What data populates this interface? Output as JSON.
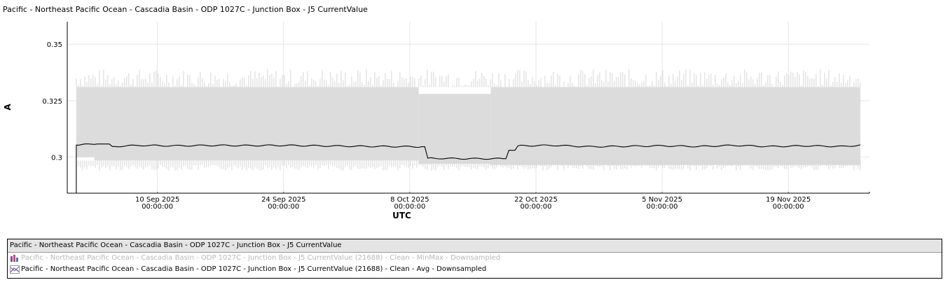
{
  "title": "Pacific - Northeast Pacific Ocean - Cascadia Basin - ODP 1027C - Junction Box - J5 CurrentValue",
  "chart_data": {
    "type": "area",
    "xlabel": "UTC",
    "ylabel": "A",
    "xlim": [
      "2025-08-31T00:00:00",
      "2025-11-28T00:00:00"
    ],
    "ylim": [
      0.284,
      0.36
    ],
    "x_ticks": [
      {
        "date": "2025-09-10T00:00:00",
        "label1": "10 Sep 2025",
        "label2": "00:00:00"
      },
      {
        "date": "2025-09-24T00:00:00",
        "label1": "24 Sep 2025",
        "label2": "00:00:00"
      },
      {
        "date": "2025-10-08T00:00:00",
        "label1": "8 Oct 2025",
        "label2": "00:00:00"
      },
      {
        "date": "2025-10-22T00:00:00",
        "label1": "22 Oct 2025",
        "label2": "00:00:00"
      },
      {
        "date": "2025-11-05T00:00:00",
        "label1": "5 Nov 2025",
        "label2": "00:00:00"
      },
      {
        "date": "2025-11-19T00:00:00",
        "label1": "19 Nov 2025",
        "label2": "00:00:00"
      }
    ],
    "y_ticks": [
      {
        "value": 0.3,
        "label": "0.3"
      },
      {
        "value": 0.325,
        "label": "0.325"
      },
      {
        "value": 0.35,
        "label": "0.35"
      }
    ],
    "grid": true,
    "legend_position": "bottom",
    "series": [
      {
        "name": "Pacific - Northeast Pacific Ocean - Cascadia Basin - ODP 1027C - Junction Box - J5 CurrentValue (21688) - Clean - MinMax - Downsampled",
        "kind": "minmax-band",
        "color": "#dcdcdc",
        "segments": [
          {
            "start": "2025-09-01",
            "end": "2025-09-03",
            "min": 0.3,
            "max": 0.331
          },
          {
            "start": "2025-09-03",
            "end": "2025-10-09",
            "min": 0.2985,
            "max": 0.331
          },
          {
            "start": "2025-10-09",
            "end": "2025-10-17",
            "min": 0.297,
            "max": 0.328
          },
          {
            "start": "2025-10-17",
            "end": "2025-11-27",
            "min": 0.2965,
            "max": 0.331
          }
        ]
      },
      {
        "name": "Pacific - Northeast Pacific Ocean - Cascadia Basin - ODP 1027C - Junction Box - J5 CurrentValue (21688) - Clean - Avg - Downsampled",
        "kind": "line",
        "color": "#000000",
        "points": [
          [
            "2025-09-01",
            0.3053
          ],
          [
            "2025-09-03",
            0.3058
          ],
          [
            "2025-09-05",
            0.3047
          ],
          [
            "2025-09-08",
            0.3052
          ],
          [
            "2025-09-12",
            0.305
          ],
          [
            "2025-09-16",
            0.3052
          ],
          [
            "2025-09-20",
            0.3051
          ],
          [
            "2025-09-24",
            0.3052
          ],
          [
            "2025-09-28",
            0.305
          ],
          [
            "2025-10-02",
            0.3048
          ],
          [
            "2025-10-06",
            0.3047
          ],
          [
            "2025-10-09",
            0.3046
          ],
          [
            "2025-10-10",
            0.2995
          ],
          [
            "2025-10-14",
            0.2993
          ],
          [
            "2025-10-18",
            0.2993
          ],
          [
            "2025-10-19",
            0.303
          ],
          [
            "2025-10-20",
            0.305
          ],
          [
            "2025-10-24",
            0.3052
          ],
          [
            "2025-10-28",
            0.3046
          ],
          [
            "2025-11-01",
            0.3048
          ],
          [
            "2025-11-05",
            0.305
          ],
          [
            "2025-11-09",
            0.3047
          ],
          [
            "2025-11-13",
            0.3052
          ],
          [
            "2025-11-17",
            0.3047
          ],
          [
            "2025-11-21",
            0.305
          ],
          [
            "2025-11-25",
            0.3047
          ],
          [
            "2025-11-27",
            0.3053
          ]
        ]
      }
    ]
  },
  "legend": {
    "header": "Pacific - Northeast Pacific Ocean - Cascadia Basin - ODP 1027C - Junction Box - J5 CurrentValue",
    "items": [
      {
        "label": "Pacific - Northeast Pacific Ocean - Cascadia Basin - ODP 1027C - Junction Box - J5 CurrentValue (21688) - Clean - MinMax - Downsampled",
        "icon": "minmax-bars-icon",
        "state": "hidden"
      },
      {
        "label": "Pacific - Northeast Pacific Ocean - Cascadia Basin - ODP 1027C - Junction Box - J5 CurrentValue (21688) - Clean - Avg - Downsampled",
        "icon": "line-series-icon",
        "state": "visible"
      }
    ]
  }
}
